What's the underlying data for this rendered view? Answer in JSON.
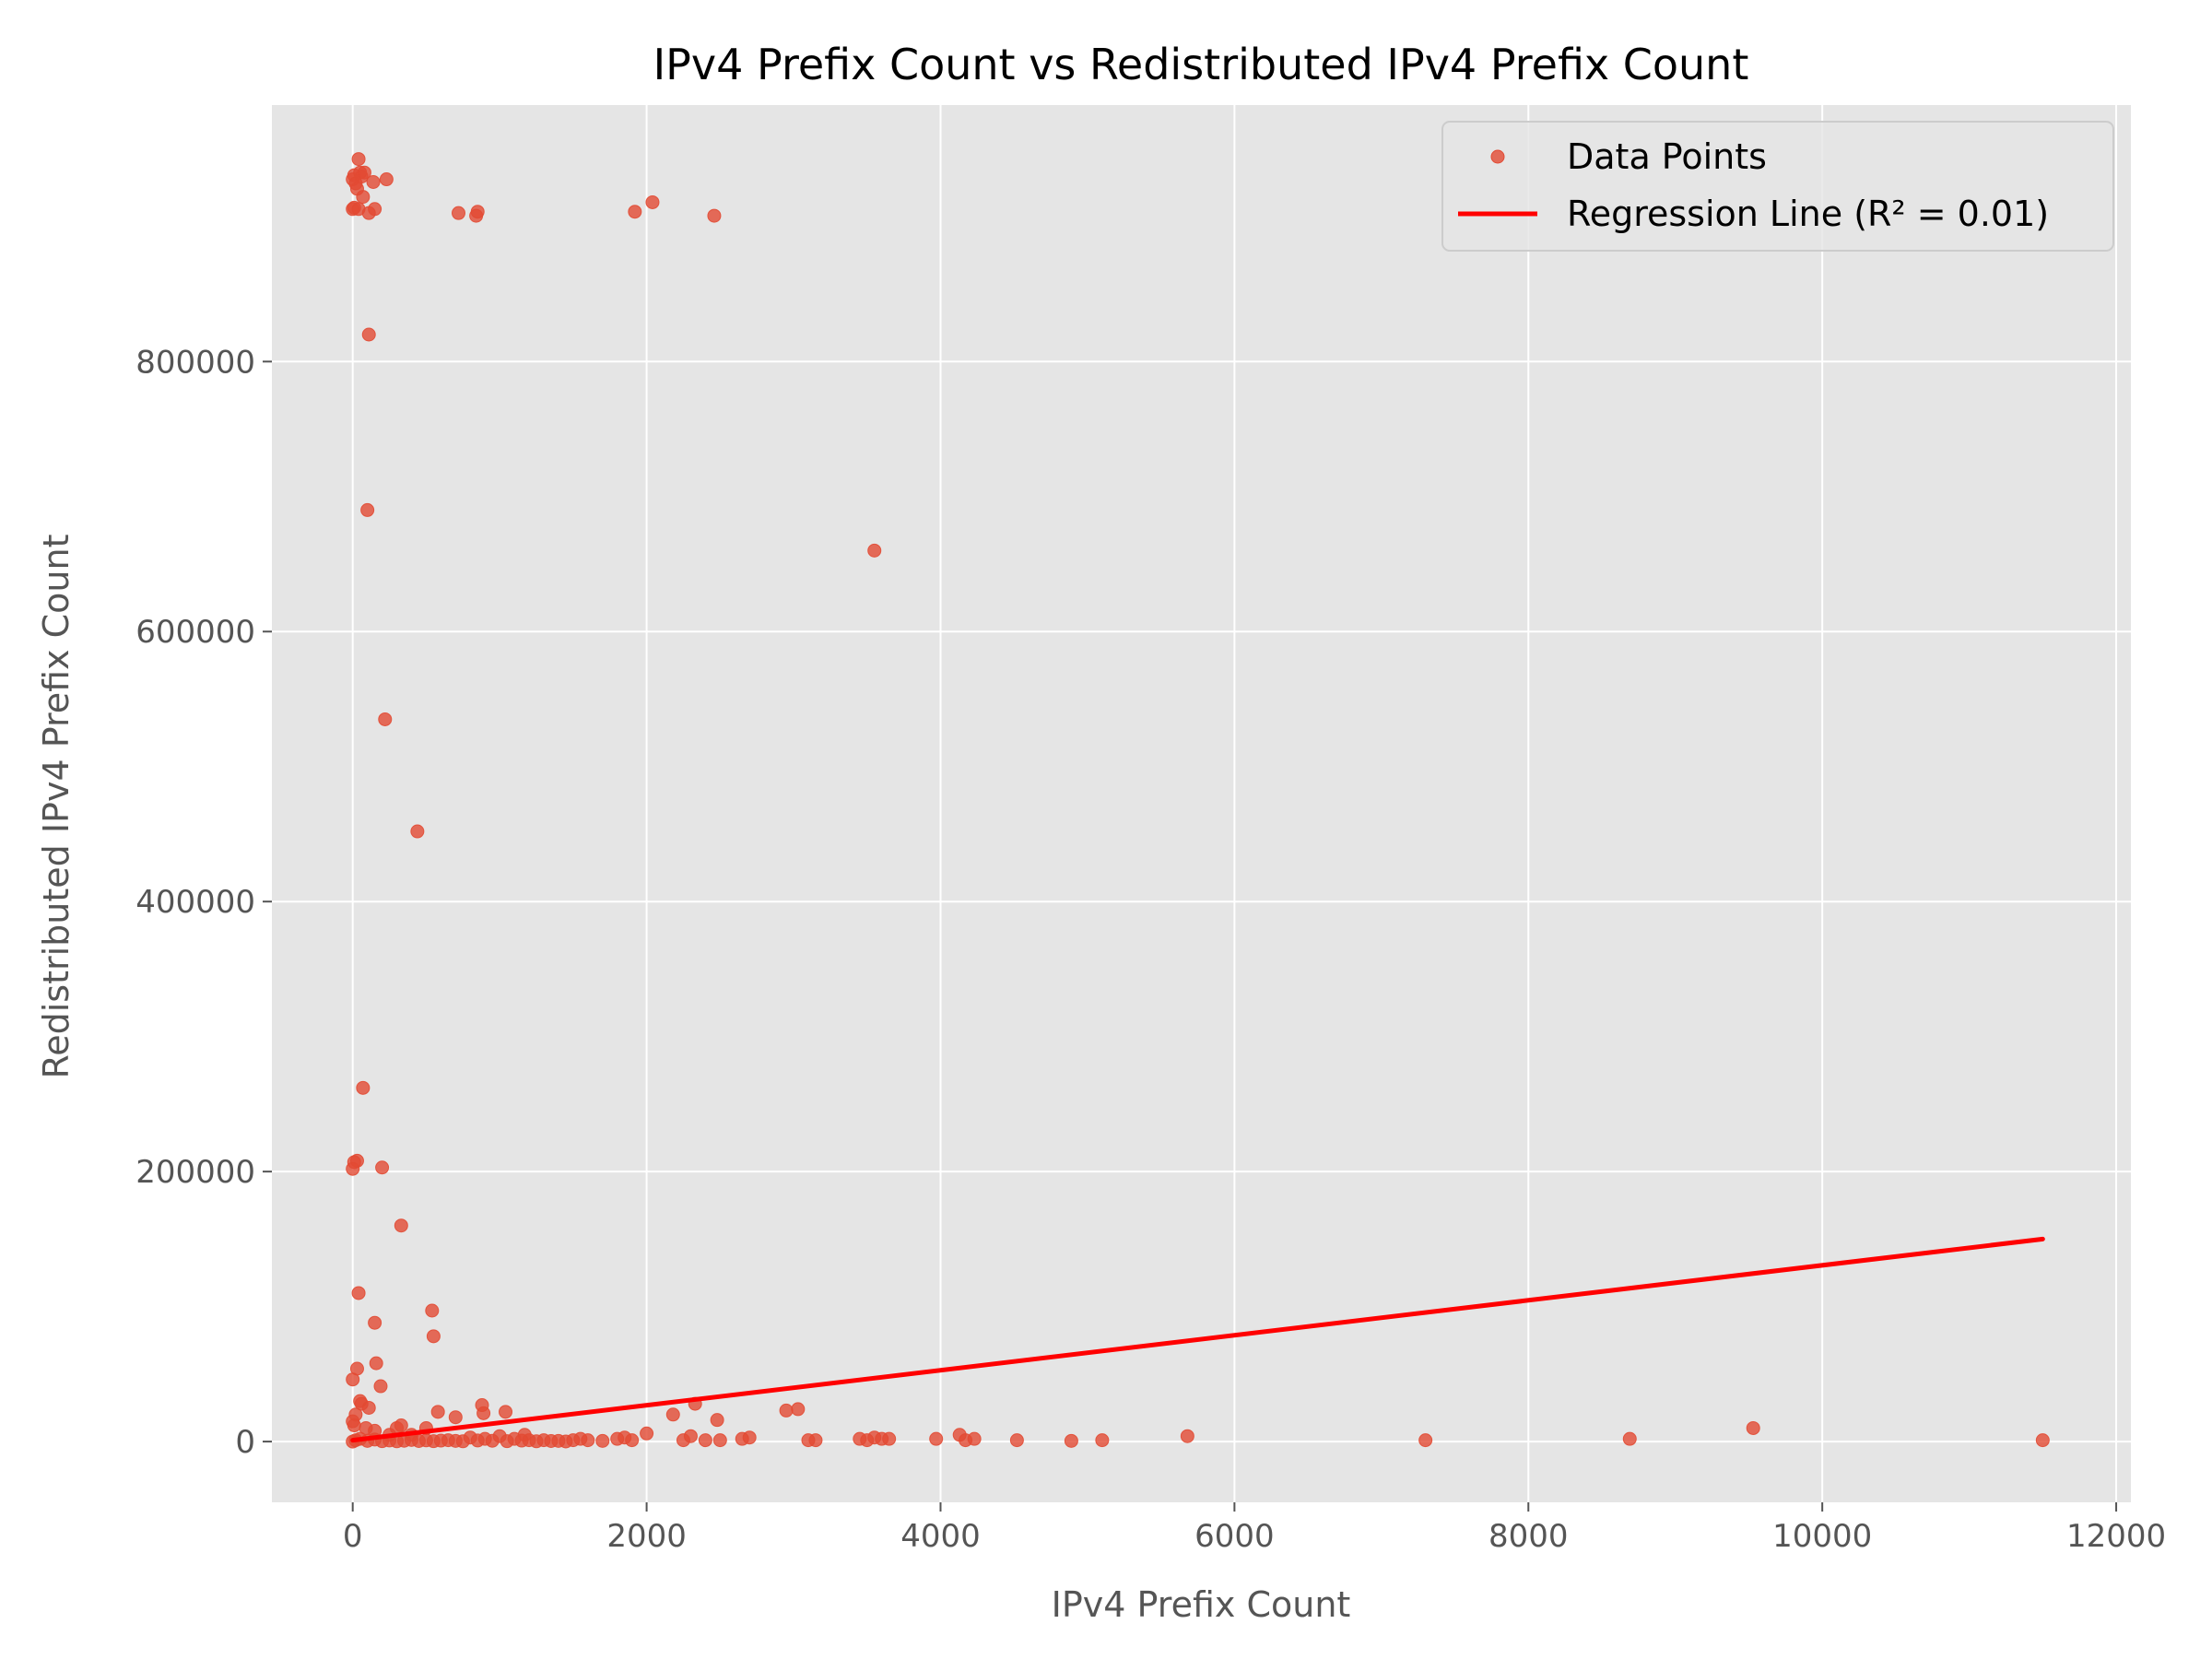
{
  "chart_data": {
    "type": "scatter",
    "title": "IPv4 Prefix Count vs Redistributed IPv4 Prefix Count",
    "xlabel": "IPv4 Prefix Count",
    "ylabel": "Redistributed IPv4 Prefix Count",
    "xlim": [
      -550,
      12100
    ],
    "ylim": [
      -45000,
      990000
    ],
    "xticks": [
      0,
      2000,
      4000,
      6000,
      8000,
      10000,
      12000
    ],
    "xtick_labels": [
      "0",
      "2000",
      "4000",
      "6000",
      "8000",
      "10000",
      "12000"
    ],
    "yticks": [
      0,
      200000,
      400000,
      600000,
      800000
    ],
    "ytick_labels": [
      "0",
      "200000",
      "400000",
      "600000",
      "800000"
    ],
    "grid": true,
    "legend_position": "top-right",
    "colors": {
      "points": "#E24A33",
      "regression": "#FF0000",
      "plot_background": "#E5E5E5",
      "grid": "#FFFFFF"
    },
    "series": [
      {
        "name": "Data Points",
        "type": "scatter",
        "points": [
          [
            0,
            935000
          ],
          [
            10,
            938000
          ],
          [
            20,
            932000
          ],
          [
            40,
            950000
          ],
          [
            50,
            940000
          ],
          [
            60,
            937000
          ],
          [
            80,
            940000
          ],
          [
            30,
            928000
          ],
          [
            70,
            922000
          ],
          [
            0,
            913000
          ],
          [
            10,
            914000
          ],
          [
            40,
            913000
          ],
          [
            110,
            910000
          ],
          [
            150,
            913000
          ],
          [
            140,
            933000
          ],
          [
            230,
            935000
          ],
          [
            110,
            820000
          ],
          [
            100,
            690000
          ],
          [
            220,
            535000
          ],
          [
            440,
            452000
          ],
          [
            720,
            910000
          ],
          [
            840,
            908000
          ],
          [
            850,
            911000
          ],
          [
            1920,
            911000
          ],
          [
            2040,
            918000
          ],
          [
            2460,
            908000
          ],
          [
            3550,
            660000
          ],
          [
            70,
            262000
          ],
          [
            10,
            207000
          ],
          [
            30,
            208000
          ],
          [
            0,
            202000
          ],
          [
            200,
            203000
          ],
          [
            330,
            160000
          ],
          [
            40,
            110000
          ],
          [
            150,
            88000
          ],
          [
            540,
            97000
          ],
          [
            550,
            78000
          ],
          [
            160,
            58000
          ],
          [
            30,
            54000
          ],
          [
            0,
            46000
          ],
          [
            190,
            41000
          ],
          [
            50,
            30000
          ],
          [
            60,
            28000
          ],
          [
            110,
            25000
          ],
          [
            20,
            20000
          ],
          [
            0,
            15000
          ],
          [
            10,
            12000
          ],
          [
            90,
            10000
          ],
          [
            150,
            8000
          ],
          [
            250,
            5000
          ],
          [
            300,
            10000
          ],
          [
            330,
            12000
          ],
          [
            400,
            5000
          ],
          [
            500,
            10000
          ],
          [
            580,
            22000
          ],
          [
            700,
            18000
          ],
          [
            880,
            27000
          ],
          [
            890,
            21000
          ],
          [
            1040,
            22000
          ],
          [
            800,
            3000
          ],
          [
            900,
            2000
          ],
          [
            1000,
            4000
          ],
          [
            1100,
            2000
          ],
          [
            1170,
            5000
          ],
          [
            1200,
            1000
          ],
          [
            1300,
            1000
          ],
          [
            1400,
            500
          ],
          [
            1500,
            1000
          ],
          [
            1550,
            2000
          ],
          [
            1600,
            1000
          ],
          [
            1700,
            500
          ],
          [
            1800,
            2000
          ],
          [
            1850,
            3000
          ],
          [
            1900,
            1000
          ],
          [
            2000,
            6000
          ],
          [
            2180,
            20000
          ],
          [
            2250,
            1000
          ],
          [
            2300,
            4000
          ],
          [
            2330,
            28000
          ],
          [
            2400,
            1000
          ],
          [
            2480,
            16000
          ],
          [
            2500,
            1000
          ],
          [
            2650,
            2000
          ],
          [
            2700,
            3000
          ],
          [
            2950,
            23000
          ],
          [
            3030,
            24000
          ],
          [
            3100,
            1000
          ],
          [
            3150,
            1000
          ],
          [
            3450,
            2000
          ],
          [
            3500,
            1000
          ],
          [
            3550,
            3000
          ],
          [
            3600,
            2000
          ],
          [
            3650,
            2000
          ],
          [
            3970,
            2000
          ],
          [
            4130,
            5000
          ],
          [
            4170,
            1000
          ],
          [
            4230,
            2000
          ],
          [
            4520,
            1000
          ],
          [
            4890,
            500
          ],
          [
            5100,
            1000
          ],
          [
            5680,
            4000
          ],
          [
            7300,
            1000
          ],
          [
            8690,
            2000
          ],
          [
            9530,
            10000
          ],
          [
            11500,
            1000
          ],
          [
            0,
            0
          ],
          [
            20,
            1000
          ],
          [
            50,
            2000
          ],
          [
            100,
            500
          ],
          [
            150,
            1500
          ],
          [
            200,
            300
          ],
          [
            250,
            800
          ],
          [
            300,
            200
          ],
          [
            350,
            600
          ],
          [
            400,
            1200
          ],
          [
            450,
            400
          ],
          [
            500,
            900
          ],
          [
            550,
            300
          ],
          [
            600,
            700
          ],
          [
            650,
            1000
          ],
          [
            700,
            500
          ],
          [
            750,
            200
          ],
          [
            850,
            800
          ],
          [
            950,
            600
          ],
          [
            1050,
            300
          ],
          [
            1150,
            700
          ],
          [
            1250,
            200
          ],
          [
            1350,
            400
          ],
          [
            1450,
            100
          ]
        ]
      },
      {
        "name": "Regression Line (R² = 0.01)",
        "type": "line",
        "x": [
          0,
          11500
        ],
        "y": [
          1000,
          150000
        ]
      }
    ]
  }
}
